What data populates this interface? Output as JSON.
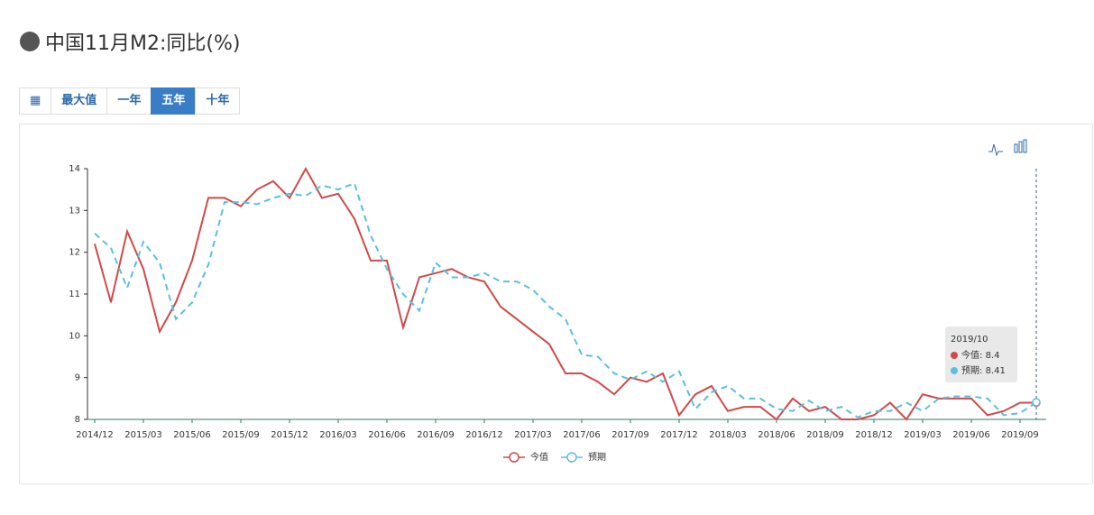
{
  "header": {
    "title": "中国11月M2:同比(%)"
  },
  "toolbar": {
    "buttons": [
      "最大值",
      "一年",
      "五年",
      "十年"
    ],
    "active": 2
  },
  "chart_data": {
    "type": "line",
    "categories": [
      "2014/12",
      null,
      null,
      "2015/03",
      null,
      null,
      "2015/06",
      null,
      null,
      "2015/09",
      null,
      null,
      "2015/12",
      null,
      null,
      "2016/03",
      null,
      null,
      "2016/06",
      null,
      null,
      "2016/09",
      null,
      null,
      "2016/12",
      null,
      null,
      "2017/03",
      null,
      null,
      "2017/06",
      null,
      null,
      "2017/09",
      null,
      null,
      "2017/12",
      null,
      null,
      "2018/03",
      null,
      null,
      "2018/06",
      null,
      null,
      "2018/09",
      null,
      null,
      "2018/12",
      null,
      null,
      "2019/03",
      null,
      null,
      "2019/06",
      null,
      null,
      "2019/09",
      "2019/10"
    ],
    "series": [
      {
        "name": "今值",
        "color": "#d14a4a",
        "dashed": false,
        "values": [
          12.2,
          10.8,
          12.5,
          11.6,
          10.1,
          10.8,
          11.8,
          13.3,
          13.3,
          13.1,
          13.5,
          13.7,
          13.3,
          14.0,
          13.3,
          13.4,
          12.8,
          11.8,
          11.8,
          10.2,
          11.4,
          11.5,
          11.6,
          11.4,
          11.3,
          10.7,
          10.4,
          10.1,
          9.8,
          9.1,
          9.1,
          8.9,
          8.6,
          9.0,
          8.9,
          9.1,
          8.1,
          8.6,
          8.8,
          8.2,
          8.3,
          8.3,
          8.0,
          8.5,
          8.2,
          8.3,
          8.0,
          8.0,
          8.1,
          8.4,
          8.0,
          8.6,
          8.5,
          8.5,
          8.5,
          8.1,
          8.2,
          8.4,
          8.4
        ]
      },
      {
        "name": "预期",
        "color": "#5bc0de",
        "dashed": true,
        "values": [
          12.45,
          12.1,
          11.15,
          12.25,
          11.75,
          10.4,
          10.8,
          11.7,
          13.2,
          13.2,
          13.15,
          13.3,
          13.4,
          13.35,
          13.6,
          13.5,
          13.65,
          12.4,
          11.6,
          11.0,
          10.6,
          11.75,
          11.4,
          11.4,
          11.5,
          11.3,
          11.3,
          11.1,
          10.7,
          10.4,
          9.55,
          9.5,
          9.1,
          8.95,
          9.15,
          8.9,
          9.15,
          8.25,
          8.65,
          8.8,
          8.5,
          8.5,
          8.25,
          8.2,
          8.45,
          8.2,
          8.3,
          8.05,
          8.2,
          8.2,
          8.4,
          8.2,
          8.5,
          8.55,
          8.55,
          8.5,
          8.1,
          8.15,
          8.41
        ]
      }
    ],
    "ylim": [
      8,
      14
    ],
    "yticks": [
      8,
      9,
      10,
      11,
      12,
      13,
      14
    ],
    "tooltip_index": 58,
    "tooltip_separator": ": ",
    "legend": "bottom"
  }
}
